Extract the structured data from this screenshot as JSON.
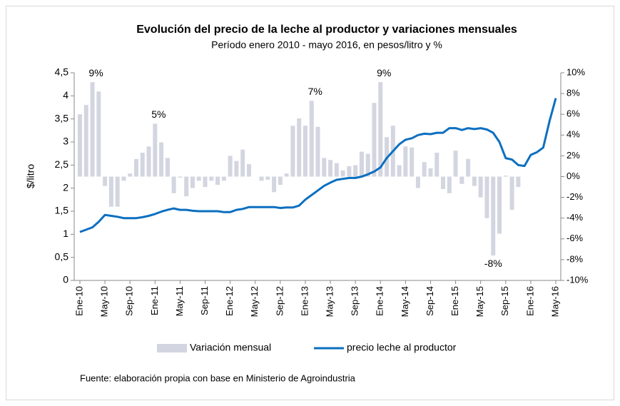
{
  "chart_data": {
    "type": "bar_line",
    "title": "Evolución del precio de la leche al productor y variaciones mensuales",
    "subtitle": "Período enero 2010 - mayo  2016, en pesos/litro y %",
    "ylabel": "$/litro",
    "source": "Fuente: elaboración propia con base en Ministerio de Agroindustria",
    "categories": [
      "Ene-10",
      null,
      null,
      null,
      "May-10",
      null,
      null,
      null,
      "Sep-10",
      null,
      null,
      null,
      "Ene-11",
      null,
      null,
      null,
      "May-11",
      null,
      null,
      null,
      "Sep-11",
      null,
      null,
      null,
      "Ene-12",
      null,
      null,
      null,
      "May-12",
      null,
      null,
      null,
      "Sep-12",
      null,
      null,
      null,
      "Ene-13",
      null,
      null,
      null,
      "May-13",
      null,
      null,
      null,
      "Sep-13",
      null,
      null,
      null,
      "Ene-14",
      null,
      null,
      null,
      "May-14",
      null,
      null,
      null,
      "Sep-14",
      null,
      null,
      null,
      "Ene-15",
      null,
      null,
      null,
      "May-15",
      null,
      null,
      null,
      "Sep-15",
      null,
      null,
      null,
      "Ene-16",
      null,
      null,
      null,
      "May-16"
    ],
    "series": [
      {
        "name": "Variación mensual",
        "kind": "bar",
        "axis": "y2",
        "color": "#d3d6e0",
        "values": [
          6.0,
          6.9,
          9.1,
          8.2,
          -0.9,
          -2.9,
          -2.9,
          -0.4,
          0.3,
          1.7,
          2.3,
          2.9,
          5.1,
          3.3,
          1.8,
          -1.6,
          -0.1,
          -1.9,
          -1.1,
          -0.4,
          -1.0,
          -0.4,
          -0.8,
          -0.4,
          2.0,
          1.5,
          2.6,
          1.2,
          0,
          -0.4,
          -0.3,
          -1.5,
          -0.8,
          0.3,
          4.9,
          5.6,
          4.9,
          7.3,
          4.8,
          1.8,
          1.6,
          1.3,
          0.6,
          1.0,
          1.1,
          2.4,
          2.2,
          7.1,
          9.1,
          3.8,
          4.9,
          1.1,
          2.9,
          2.8,
          -1.1,
          1.4,
          0.8,
          2.3,
          -1.2,
          -1.6,
          2.5,
          -0.7,
          1.7,
          -0.9,
          -2.0,
          -4.0,
          -7.6,
          -5.5,
          0.1,
          -3.2,
          -1.0,
          0,
          null,
          null,
          null,
          null,
          null
        ],
        "value_labels": [
          null,
          null,
          "9%",
          null,
          null,
          null,
          null,
          null,
          null,
          null,
          null,
          null,
          "5%",
          null,
          null,
          null,
          null,
          null,
          null,
          null,
          null,
          null,
          null,
          null,
          null,
          null,
          null,
          null,
          null,
          null,
          null,
          null,
          null,
          null,
          null,
          null,
          null,
          "7%",
          null,
          null,
          null,
          null,
          null,
          null,
          null,
          null,
          null,
          null,
          "9%",
          null,
          null,
          null,
          null,
          null,
          null,
          null,
          null,
          null,
          null,
          null,
          null,
          null,
          null,
          null,
          null,
          null,
          "-8%",
          null,
          null,
          null,
          null,
          null,
          null,
          null,
          null,
          null,
          null
        ]
      },
      {
        "name": "precio leche al productor",
        "kind": "line",
        "axis": "y",
        "color": "#0b6fc0",
        "values": [
          1.05,
          1.1,
          1.15,
          1.27,
          1.42,
          1.4,
          1.38,
          1.35,
          1.35,
          1.35,
          1.37,
          1.4,
          1.44,
          1.49,
          1.53,
          1.56,
          1.53,
          1.53,
          1.51,
          1.5,
          1.5,
          1.5,
          1.5,
          1.48,
          1.48,
          1.53,
          1.55,
          1.59,
          1.59,
          1.59,
          1.59,
          1.59,
          1.57,
          1.58,
          1.58,
          1.62,
          1.75,
          1.85,
          1.95,
          2.05,
          2.12,
          2.18,
          2.2,
          2.22,
          2.22,
          2.25,
          2.3,
          2.36,
          2.45,
          2.65,
          2.8,
          2.95,
          3.05,
          3.08,
          3.15,
          3.18,
          3.17,
          3.2,
          3.2,
          3.3,
          3.3,
          3.26,
          3.3,
          3.28,
          3.3,
          3.27,
          3.2,
          3.0,
          2.65,
          2.62,
          2.5,
          2.48,
          2.72,
          2.78,
          2.88,
          3.45,
          3.95
        ]
      }
    ],
    "ylim": [
      0,
      4.5
    ],
    "yticks": [
      0,
      {
        "value": 0.5,
        "label": "0,5"
      },
      1,
      {
        "value": 1.5,
        "label": "1,5"
      },
      2,
      {
        "value": 2.5,
        "label": "2,5"
      },
      3,
      {
        "value": 3.5,
        "label": "3,5"
      },
      4,
      {
        "value": 4.5,
        "label": "4,5"
      }
    ],
    "y2lim": [
      -10,
      10
    ],
    "y2ticks": [
      {
        "value": -10,
        "label": "-10%"
      },
      {
        "value": -8,
        "label": "-8%"
      },
      {
        "value": -6,
        "label": "-6%"
      },
      {
        "value": -4,
        "label": "-4%"
      },
      {
        "value": -2,
        "label": "-2%"
      },
      {
        "value": 0,
        "label": "0%"
      },
      {
        "value": 2,
        "label": "2%"
      },
      {
        "value": 4,
        "label": "4%"
      },
      {
        "value": 6,
        "label": "6%"
      },
      {
        "value": 8,
        "label": "8%"
      },
      {
        "value": 10,
        "label": "10%"
      }
    ],
    "legend": "bottom"
  }
}
